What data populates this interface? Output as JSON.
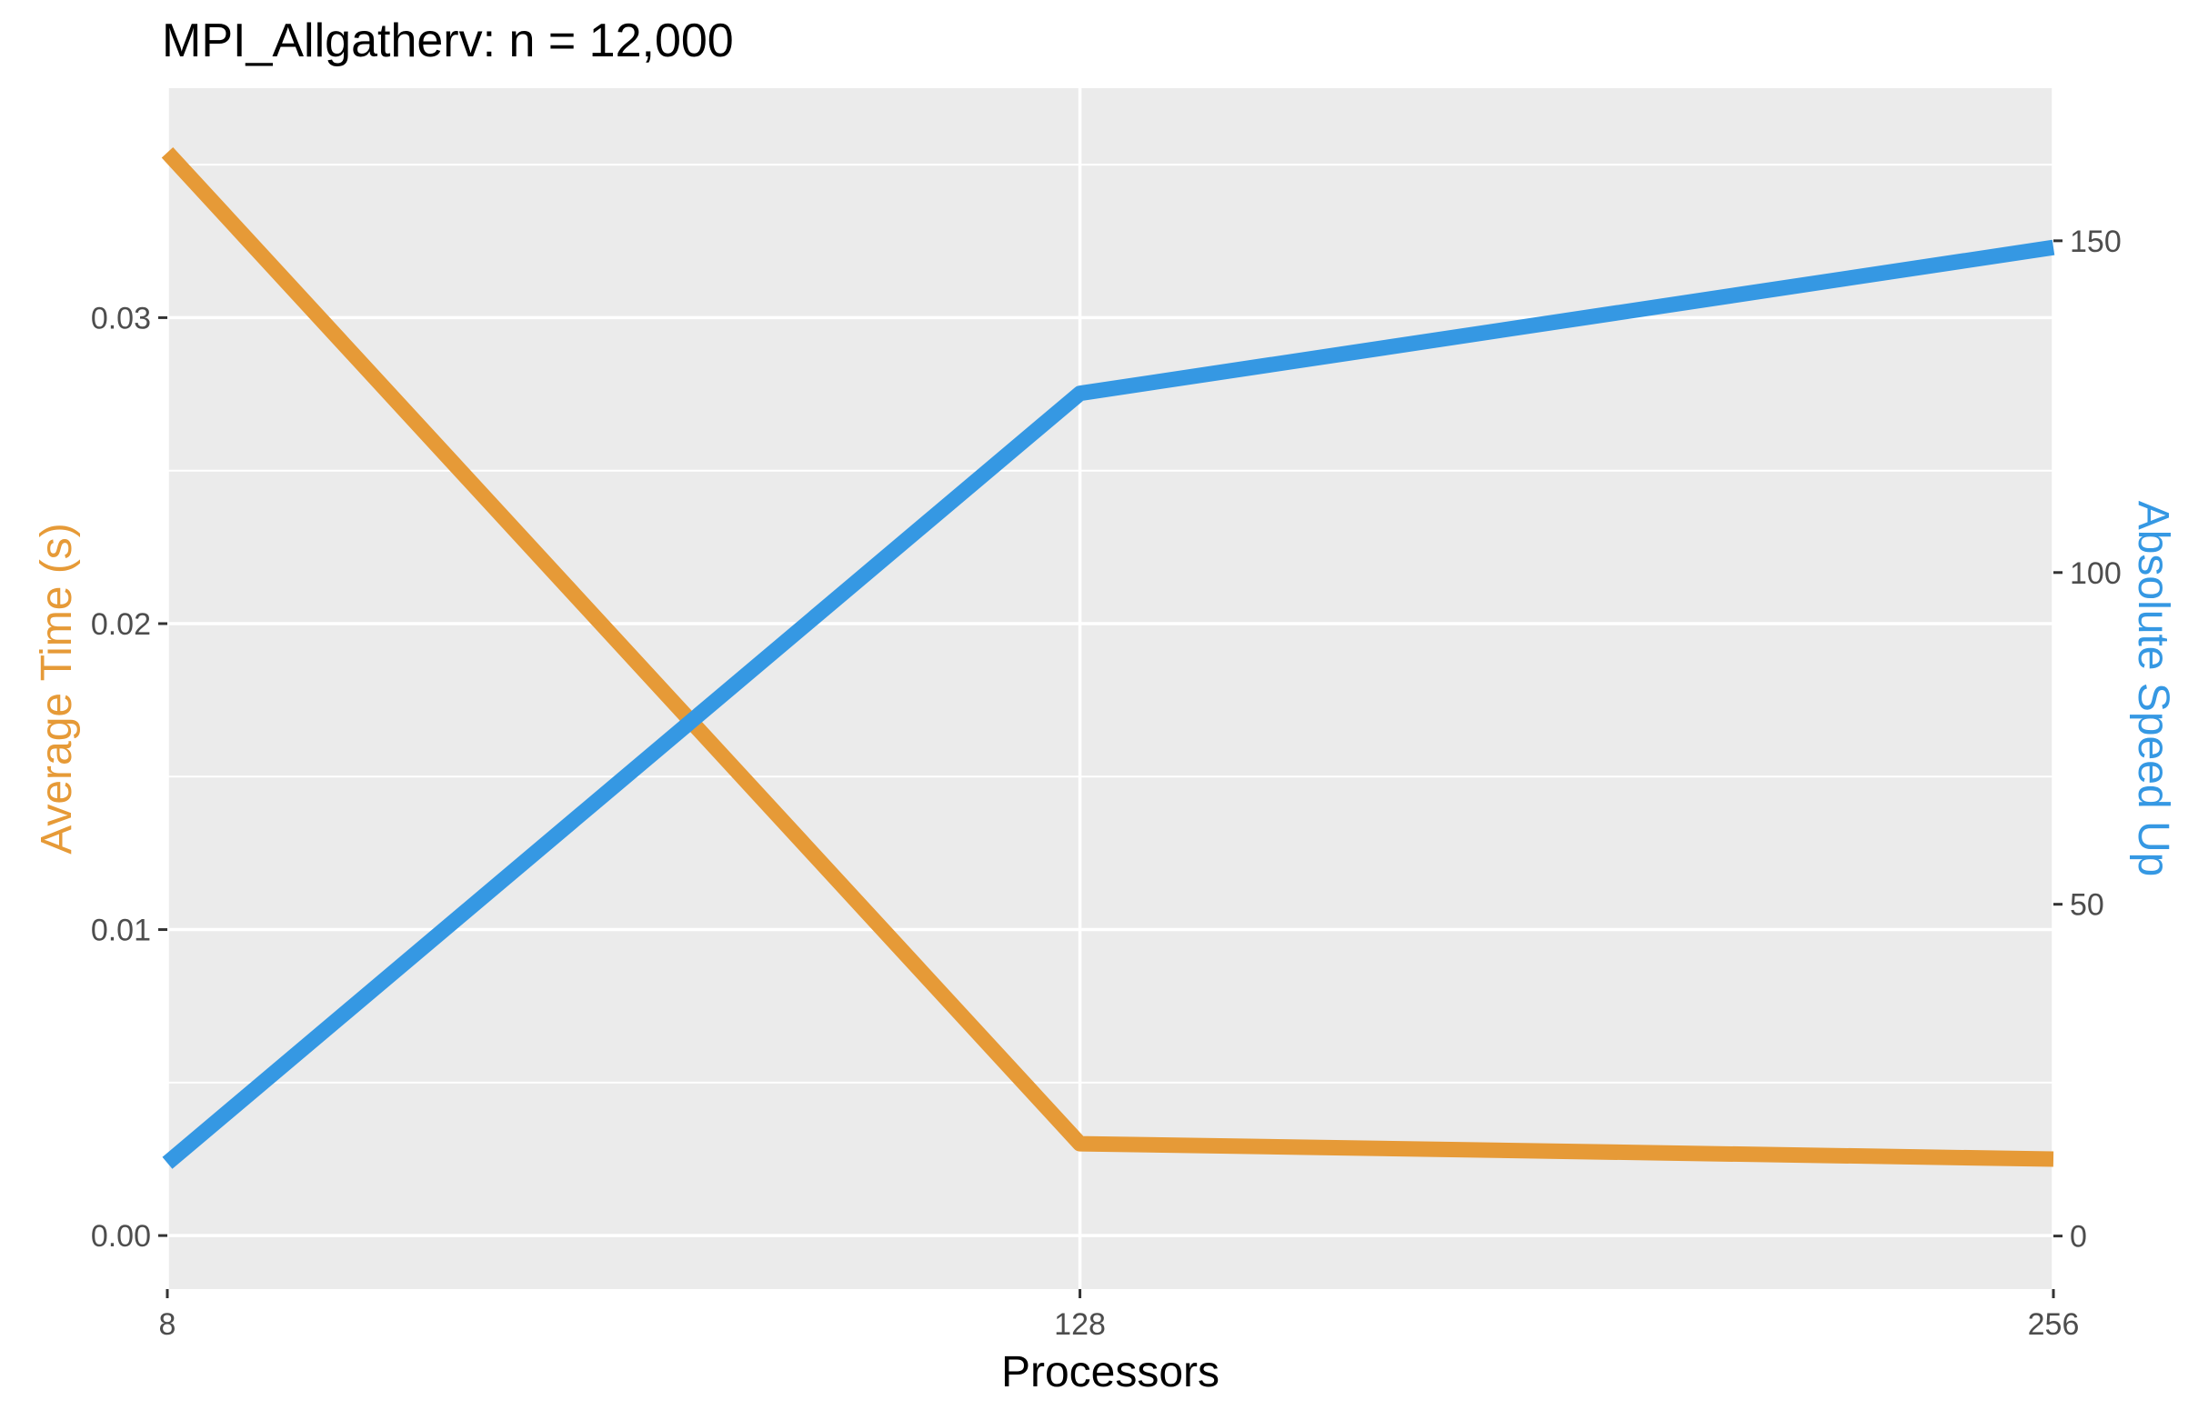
{
  "chart_data": {
    "type": "line",
    "title": "MPI_Allgatherv: n = 12,000",
    "xlabel": "Processors",
    "ylabel": "Average Time (s)",
    "ylabel_right": "Absolute Speed Up",
    "x": [
      8,
      128,
      256
    ],
    "x_ticks": [
      "8",
      "128",
      "256"
    ],
    "ylim": [
      -0.00175,
      0.0375
    ],
    "ylim_right": [
      -8,
      173
    ],
    "y_ticks": [
      "0.00",
      "0.01",
      "0.02",
      "0.03"
    ],
    "y_ticks_right": [
      "0",
      "50",
      "100",
      "150"
    ],
    "grid": true,
    "series": [
      {
        "axis": "left",
        "color": "#E69A37",
        "values": [
          0.0354,
          0.003,
          0.0025
        ]
      },
      {
        "axis": "right",
        "color": "#3598E3",
        "values": [
          11,
          127,
          149
        ]
      }
    ],
    "colors": {
      "panel": "#EBEBEB",
      "grid": "#FFFFFF",
      "left_axis_title": "#E69A37",
      "right_axis_title": "#3598E3"
    }
  }
}
